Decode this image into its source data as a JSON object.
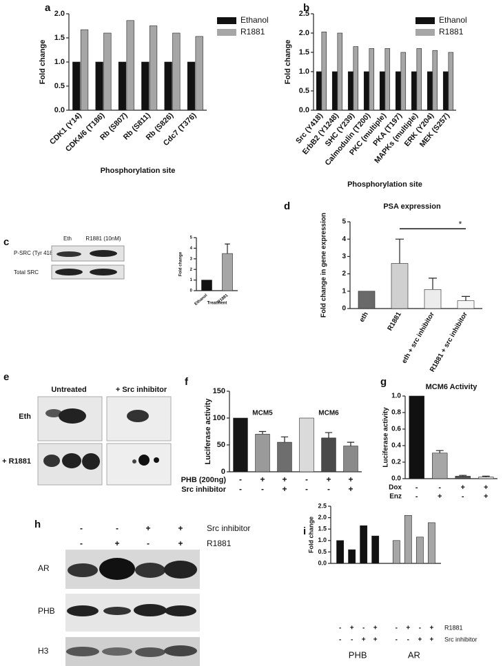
{
  "chart_data": [
    {
      "type": "bar",
      "panel": "a",
      "categories": [
        "CDK1 (Y14)",
        "CDK4/6 (T186)",
        "Rb (S807)",
        "Rb (S811)",
        "Rb (S826)",
        "Cdc7 (T376)"
      ],
      "series": [
        {
          "name": "Ethanol",
          "color": "#111111",
          "values": [
            1,
            1,
            1,
            1,
            1,
            1
          ]
        },
        {
          "name": "R1881",
          "color": "#a6a6a6",
          "values": [
            1.67,
            1.6,
            1.86,
            1.75,
            1.6,
            1.53
          ]
        }
      ],
      "ylim": [
        0,
        2
      ],
      "yticks": [
        {
          "value": 0,
          "label": "0.0"
        },
        {
          "value": 0.5,
          "label": "0.5"
        },
        {
          "value": 1,
          "label": "1.0"
        },
        {
          "value": 1.5,
          "label": "1.5"
        },
        {
          "value": 2,
          "label": "2.0"
        }
      ],
      "y_label": "Fold change",
      "x_label": "Phosphorylation site",
      "legend": "top-right"
    },
    {
      "type": "bar",
      "panel": "b",
      "categories": [
        "Src (Y418)",
        "ErbB2 (Y1248)",
        "SHC (Y239)",
        "Calmodulin (T200)",
        "PKC (multiple)",
        "PKA (T197)",
        "MAPKs (multiple)",
        "ERK (Y204)",
        "MEK (S257)"
      ],
      "series": [
        {
          "name": "Ethanol",
          "color": "#111111",
          "values": [
            1,
            1,
            1,
            1,
            1,
            1,
            1,
            1,
            1
          ]
        },
        {
          "name": "R1881",
          "color": "#a6a6a6",
          "values": [
            2.03,
            2.0,
            1.65,
            1.6,
            1.6,
            1.5,
            1.6,
            1.55,
            1.5
          ]
        }
      ],
      "ylim": [
        0,
        2.5
      ],
      "yticks": [
        {
          "value": 0,
          "label": "0.0"
        },
        {
          "value": 0.5,
          "label": "0.5"
        },
        {
          "value": 1,
          "label": "1.0"
        },
        {
          "value": 1.5,
          "label": "1.5"
        },
        {
          "value": 2,
          "label": "2.0"
        },
        {
          "value": 2.5,
          "label": "2.5"
        }
      ],
      "y_label": "Fold change",
      "x_label": "Phosphorylation site",
      "legend": "top-right"
    },
    {
      "type": "bar",
      "panel": "c",
      "categories": [
        "Ethanol",
        "R1881"
      ],
      "values": [
        1,
        3.5
      ],
      "errors": [
        null,
        0.9
      ],
      "colors": [
        "#111111",
        "#a6a6a6"
      ],
      "ylim": [
        0,
        5
      ],
      "yticks": [
        0,
        1,
        2,
        3,
        4,
        5
      ],
      "y_label": "Fold change",
      "x_label": "Treatment"
    },
    {
      "type": "bar",
      "panel": "d",
      "title": "PSA expression",
      "categories": [
        "eth",
        "R1881",
        "eth + src inhibitor",
        "R1881 + src inhibitor"
      ],
      "values": [
        1,
        2.6,
        1.1,
        0.45
      ],
      "errors": [
        null,
        1.4,
        0.65,
        0.25
      ],
      "colors": [
        "#6a6a6a",
        "#d0d0d0",
        "#ececec",
        "#f6f6f6"
      ],
      "ylim": [
        0,
        5
      ],
      "yticks": [
        0,
        1,
        2,
        3,
        4,
        5
      ],
      "y_label": "Fold change in gene expression",
      "annotation": "*"
    },
    {
      "type": "bar",
      "panel": "f",
      "categories": [
        null,
        null,
        null,
        null,
        null,
        null
      ],
      "values": [
        100,
        70,
        55,
        100,
        63,
        48
      ],
      "errors": [
        null,
        5,
        10,
        null,
        10,
        7
      ],
      "colors": [
        "#161616",
        "#9a9a9a",
        "#6e6e6e",
        "#dadada",
        "#4a4a4a",
        "#8a8a8a"
      ],
      "group_labels": [
        "MCM5",
        "MCM6"
      ],
      "conditions": [
        {
          "name": "PHB (200ng)",
          "signs": [
            "-",
            "+",
            "+",
            "-",
            "+",
            "+"
          ]
        },
        {
          "name": "Src inhibitor",
          "signs": [
            "-",
            "-",
            "+",
            "-",
            "-",
            "+"
          ]
        }
      ],
      "ylim": [
        0,
        150
      ],
      "yticks": [
        0,
        50,
        100,
        150
      ],
      "y_label": "Luciferase activity"
    },
    {
      "type": "bar",
      "panel": "g",
      "title": "MCM6 Activity",
      "categories": [
        null,
        null,
        null,
        null
      ],
      "values": [
        1.0,
        0.31,
        0.03,
        0.02
      ],
      "errors": [
        null,
        0.03,
        0.01,
        0.01
      ],
      "colors": [
        "#111111",
        "#a6a6a6",
        "#555555",
        "#dddddd"
      ],
      "conditions": [
        {
          "name": "Dox",
          "signs": [
            "-",
            "-",
            "+",
            "+"
          ]
        },
        {
          "name": "Enz",
          "signs": [
            "-",
            "+",
            "-",
            "+"
          ]
        }
      ],
      "ylim": [
        0,
        1
      ],
      "yticks": [
        {
          "value": 0,
          "label": "0.0"
        },
        {
          "value": 0.2,
          "label": "0.2"
        },
        {
          "value": 0.4,
          "label": "0.4"
        },
        {
          "value": 0.6,
          "label": "0.6"
        },
        {
          "value": 0.8,
          "label": "0.8"
        },
        {
          "value": 1,
          "label": "1.0"
        }
      ],
      "y_label": "Luciferase activity"
    },
    {
      "type": "bar",
      "panel": "i",
      "series": [
        {
          "name": "PHB",
          "color": "#111111",
          "values": [
            1.0,
            0.6,
            1.65,
            1.2
          ]
        },
        {
          "name": "AR",
          "color": "#a6a6a6",
          "values": [
            1.0,
            2.1,
            1.15,
            1.78
          ]
        }
      ],
      "conditions": [
        {
          "name": "R1881",
          "signs": [
            "-",
            "+",
            "-",
            "+",
            "-",
            "+",
            "-",
            "+"
          ]
        },
        {
          "name": "Src inhibitor",
          "signs": [
            "-",
            "-",
            "+",
            "+",
            "-",
            "-",
            "+",
            "+"
          ]
        }
      ],
      "ylim": [
        0,
        2.5
      ],
      "yticks": [
        {
          "value": 0,
          "label": "0.0"
        },
        {
          "value": 0.5,
          "label": "0.5"
        },
        {
          "value": 1,
          "label": "1.0"
        },
        {
          "value": 1.5,
          "label": "1.5"
        },
        {
          "value": 2,
          "label": "2.0"
        },
        {
          "value": 2.5,
          "label": "2.5"
        }
      ],
      "y_label": "Fold change"
    }
  ],
  "blots": [
    {
      "panel": "c",
      "columns": [
        "Eth",
        "R1881 (10nM)"
      ],
      "rows": [
        "P-SRC (Tyr 418)",
        "Total SRC"
      ]
    },
    {
      "panel": "e",
      "columns": [
        "Untreated",
        "+ Src inhibitor"
      ],
      "rows": [
        "Eth",
        "+ R1881"
      ]
    },
    {
      "panel": "h",
      "conditions": [
        {
          "name": "Src inhibitor",
          "signs": [
            "-",
            "-",
            "+",
            "+"
          ]
        },
        {
          "name": "R1881",
          "signs": [
            "-",
            "+",
            "-",
            "+"
          ]
        }
      ],
      "rows": [
        "AR",
        "PHB",
        "H3"
      ]
    }
  ]
}
